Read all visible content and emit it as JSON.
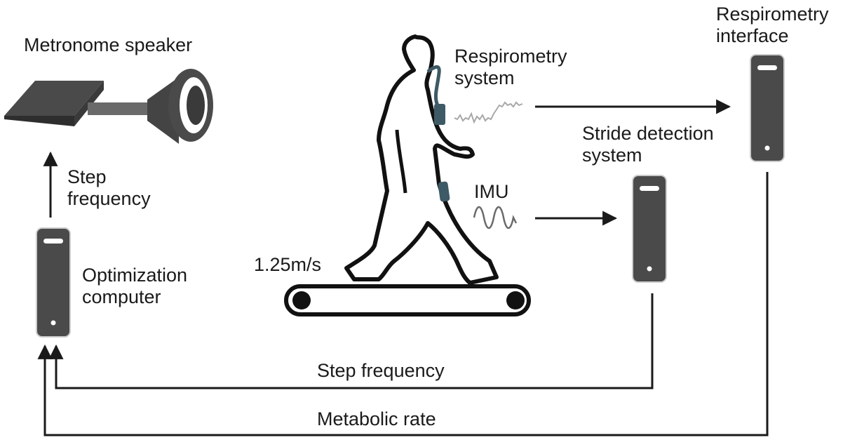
{
  "labels": {
    "metronome": "Metronome speaker",
    "step_freq_left_1": "Step",
    "step_freq_left_2": "frequency",
    "optimization_1": "Optimization",
    "optimization_2": "computer",
    "respirometry_system_1": "Respirometry",
    "respirometry_system_2": "system",
    "respirometry_interface_1": "Respirometry",
    "respirometry_interface_2": "interface",
    "stride_1": "Stride detection",
    "stride_2": "system",
    "imu": "IMU",
    "speed": "1.25m/s",
    "step_freq_bottom": "Step frequency",
    "metabolic_rate": "Metabolic rate"
  },
  "colors": {
    "line": "#1a1a1a",
    "computer_body": "#4a4a4a",
    "sensor": "#3e5a66",
    "signal": "#a8a8a8",
    "imu_wave": "#6a6a6a"
  }
}
